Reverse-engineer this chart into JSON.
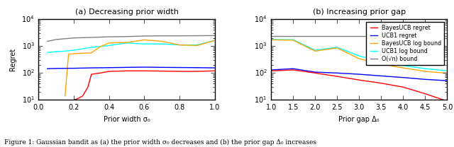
{
  "title_a": "(a) Decreasing prior width",
  "title_b": "(b) Increasing prior gap",
  "xlabel_a": "Prior width σ₀",
  "xlabel_b": "Prior gap Δ₀",
  "ylabel": "Regret",
  "caption": "Figure 1: Gaussian bandit as (a) the prior width σ₀ decreases and (b) the prior gap Δ₀ increases",
  "legend_labels": [
    "BayesUCB regret",
    "UCB1 regret",
    "BayesUCB log bound",
    "UCB1 log bound",
    "O(√n) bound"
  ],
  "legend_colors": [
    "red",
    "blue",
    "orange",
    "cyan",
    "gray"
  ],
  "plot_a": {
    "xlim": [
      0.0,
      1.0
    ],
    "ylim": [
      10,
      10000
    ],
    "xticks": [
      0.0,
      0.2,
      0.4,
      0.6,
      0.8,
      1.0
    ],
    "bayes_regret_x": [
      0.2,
      0.22,
      0.25,
      0.28,
      0.3,
      0.35,
      0.4,
      0.5,
      0.6,
      0.7,
      0.8,
      0.9,
      1.0
    ],
    "bayes_regret_y": [
      10,
      11,
      14,
      30,
      90,
      100,
      115,
      120,
      120,
      118,
      115,
      115,
      120
    ],
    "ucb1_regret_x": [
      0.05,
      0.1,
      0.2,
      0.3,
      0.4,
      0.5,
      0.6,
      0.7,
      0.8,
      0.9,
      1.0
    ],
    "ucb1_regret_y": [
      145,
      148,
      150,
      155,
      158,
      162,
      165,
      162,
      160,
      158,
      155
    ],
    "bayes_log_x": [
      0.15,
      0.17,
      0.2,
      0.25,
      0.3,
      0.35,
      0.4,
      0.45,
      0.5,
      0.6,
      0.7,
      0.8,
      0.9,
      1.0
    ],
    "bayes_log_y": [
      14,
      500,
      520,
      540,
      560,
      950,
      1300,
      1350,
      1350,
      1700,
      1500,
      1100,
      1050,
      1600
    ],
    "ucb1_log_x": [
      0.05,
      0.1,
      0.15,
      0.2,
      0.3,
      0.4,
      0.5,
      0.6,
      0.7,
      0.8,
      0.9,
      1.0
    ],
    "ucb1_log_y": [
      580,
      620,
      650,
      700,
      900,
      1050,
      1300,
      1200,
      1200,
      1100,
      1100,
      1600
    ],
    "sqrt_bound_x": [
      0.05,
      0.1,
      0.2,
      0.3,
      0.4,
      0.5,
      0.6,
      0.7,
      0.8,
      0.9,
      1.0
    ],
    "sqrt_bound_y": [
      1500,
      1750,
      2000,
      2100,
      2200,
      2250,
      2350,
      2400,
      2400,
      2420,
      2450
    ]
  },
  "plot_b": {
    "xlim": [
      1.0,
      5.0
    ],
    "ylim": [
      10,
      10000
    ],
    "xticks": [
      1.0,
      1.5,
      2.0,
      2.5,
      3.0,
      3.5,
      4.0,
      4.5,
      5.0
    ],
    "bayes_regret_x": [
      1.0,
      1.5,
      2.0,
      2.5,
      3.0,
      3.5,
      4.0,
      4.5,
      5.0
    ],
    "bayes_regret_y": [
      120,
      130,
      100,
      75,
      55,
      42,
      30,
      17,
      9
    ],
    "ucb1_regret_x": [
      1.0,
      1.5,
      2.0,
      2.5,
      3.0,
      3.5,
      4.0,
      4.5,
      5.0
    ],
    "ucb1_regret_y": [
      130,
      145,
      108,
      100,
      90,
      78,
      68,
      58,
      52
    ],
    "bayes_log_x": [
      1.0,
      1.5,
      2.0,
      2.5,
      3.0,
      3.5,
      4.0,
      4.5,
      5.0
    ],
    "bayes_log_y": [
      1700,
      1650,
      650,
      850,
      340,
      215,
      155,
      115,
      98
    ],
    "ucb1_log_x": [
      1.0,
      1.5,
      2.0,
      2.5,
      3.0,
      3.5,
      4.0,
      4.5,
      5.0
    ],
    "ucb1_log_y": [
      1750,
      1720,
      700,
      900,
      430,
      275,
      190,
      145,
      122
    ],
    "sqrt_bound_x": [
      1.0,
      1.5,
      2.0,
      2.5,
      3.0,
      3.5,
      4.0,
      4.5,
      5.0
    ],
    "sqrt_bound_y": [
      2400,
      2400,
      2400,
      2400,
      2400,
      2400,
      2400,
      2400,
      2400
    ]
  },
  "colors": {
    "bayes_regret": "red",
    "ucb1_regret": "blue",
    "bayes_log": "orange",
    "ucb1_log": "cyan",
    "sqrt_bound": "gray"
  },
  "linewidth": 1.0,
  "fig_width": 6.4,
  "fig_height": 2.08,
  "dpi": 100
}
